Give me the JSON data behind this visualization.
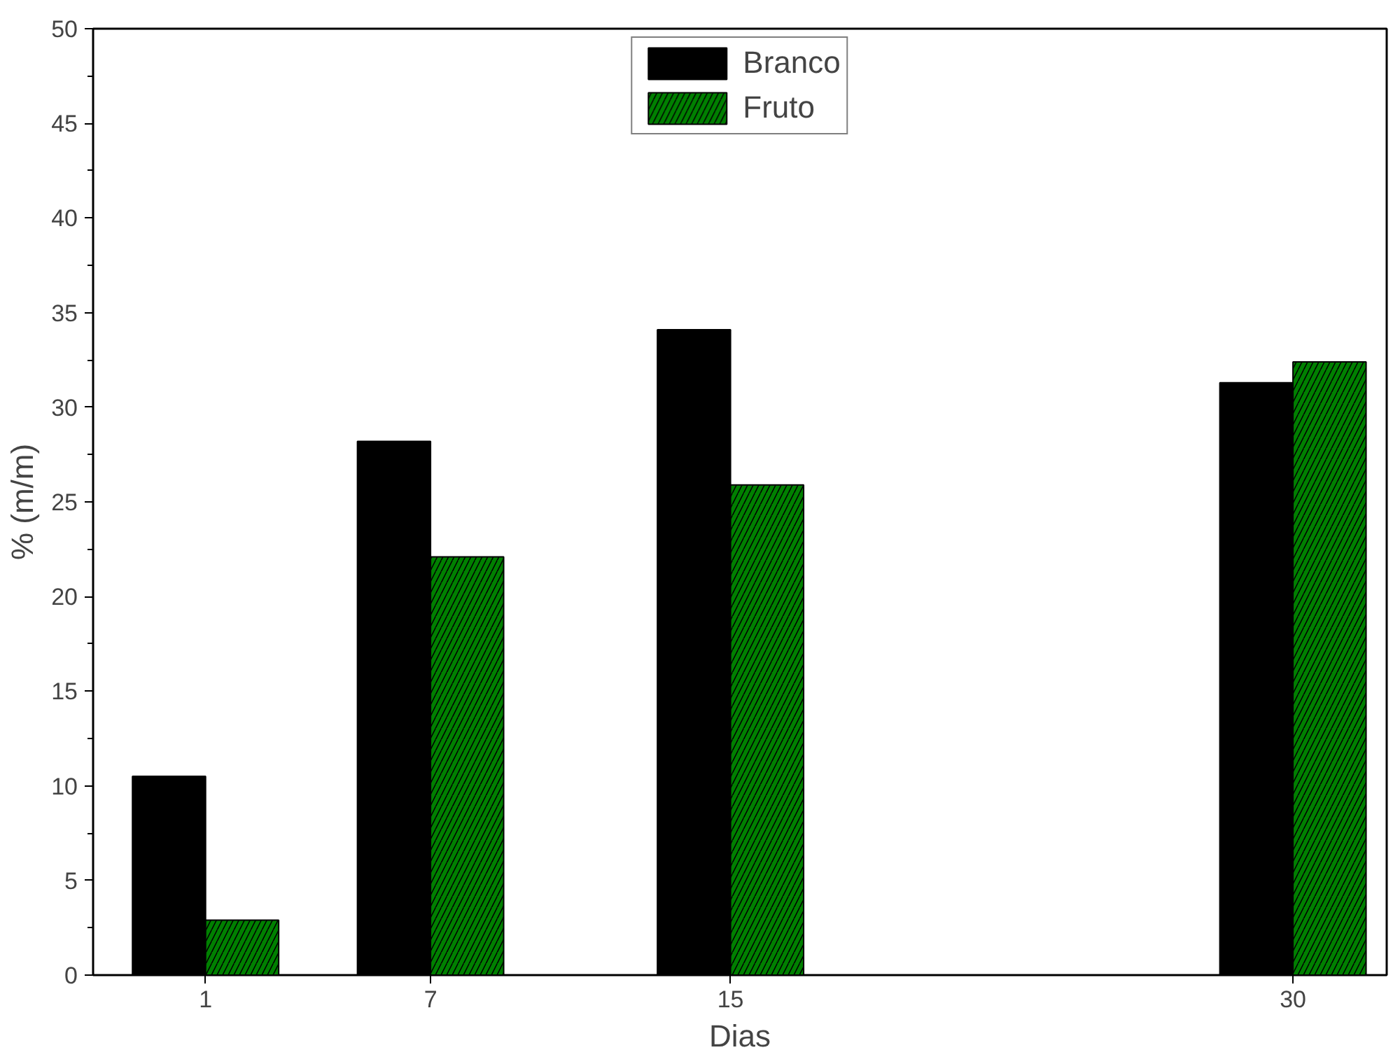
{
  "chart_data": {
    "type": "bar",
    "xlabel": "Dias",
    "ylabel": "% (m/m)",
    "x": [
      1,
      7,
      15,
      30
    ],
    "series": [
      {
        "name": "Branco",
        "color": "#000000",
        "values": [
          10.5,
          28.2,
          34.1,
          31.3
        ]
      },
      {
        "name": "Fruto",
        "color": "#008000",
        "values": [
          2.9,
          22.1,
          25.9,
          32.4
        ]
      }
    ],
    "xlim": [
      -2,
      32.5
    ],
    "xticks": [
      1,
      7,
      15,
      30
    ],
    "ylim": [
      0,
      50
    ],
    "yticks": [
      0,
      5,
      10,
      15,
      20,
      25,
      30,
      35,
      40,
      45,
      50
    ],
    "grid": false,
    "legend": "top"
  }
}
